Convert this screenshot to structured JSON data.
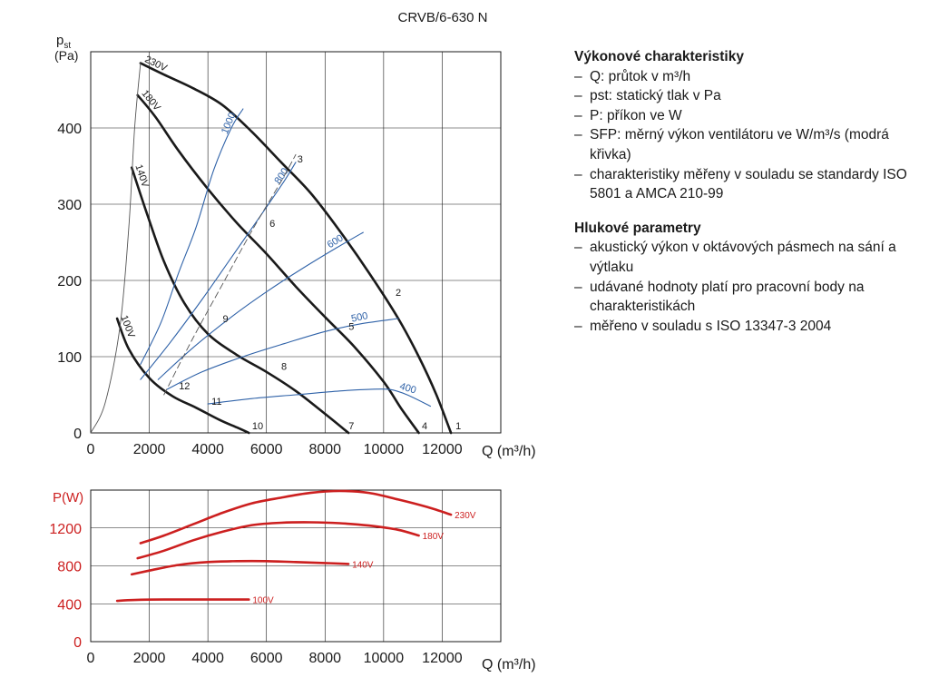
{
  "chart_data": [
    {
      "type": "line",
      "title": "CRVB/6-630 N",
      "ylabel_main": "p",
      "ylabel_sub": "st",
      "ylabel_unit": "(Pa)",
      "xlabel": "Q (m³/h)",
      "xlim": [
        0,
        14000
      ],
      "ylim": [
        0,
        500
      ],
      "xticks": [
        "0",
        "2000",
        "4000",
        "6000",
        "8000",
        "10000",
        "12000"
      ],
      "yticks": [
        "0",
        "100",
        "200",
        "300",
        "400"
      ],
      "grid": true,
      "colors": {
        "curve": "#1a1a1a",
        "sfp": "#2f62a8",
        "system": "#555555"
      },
      "series": [
        {
          "name": "230V",
          "kind": "voltage",
          "x": [
            1700,
            2500,
            3500,
            4500,
            5500,
            6500,
            7500,
            8500,
            9500,
            10500,
            11200,
            11800,
            12300
          ],
          "y": [
            485,
            470,
            452,
            430,
            395,
            355,
            315,
            265,
            210,
            150,
            100,
            50,
            0
          ]
        },
        {
          "name": "180V",
          "kind": "voltage",
          "x": [
            1600,
            2200,
            3000,
            4000,
            5000,
            6000,
            7000,
            8000,
            9000,
            10000,
            10600,
            11200
          ],
          "y": [
            443,
            415,
            370,
            320,
            275,
            235,
            192,
            152,
            113,
            67,
            32,
            0
          ]
        },
        {
          "name": "140V",
          "kind": "voltage",
          "x": [
            1400,
            1900,
            2500,
            3200,
            4000,
            5000,
            6000,
            7000,
            8000,
            8800
          ],
          "y": [
            348,
            290,
            225,
            170,
            130,
            102,
            80,
            55,
            25,
            0
          ]
        },
        {
          "name": "100V",
          "kind": "voltage",
          "x": [
            900,
            1300,
            2000,
            2800,
            3600,
            4400,
            5000,
            5400
          ],
          "y": [
            150,
            110,
            72,
            48,
            33,
            17,
            7,
            0
          ]
        },
        {
          "name": "1000",
          "kind": "sfp",
          "x": [
            1700,
            2400,
            3000,
            3600,
            4200,
            4800,
            5200
          ],
          "y": [
            90,
            145,
            210,
            270,
            345,
            400,
            425
          ]
        },
        {
          "name": "800",
          "kind": "sfp",
          "x": [
            1700,
            2700,
            3800,
            4800,
            5800,
            6600,
            7000
          ],
          "y": [
            70,
            118,
            175,
            230,
            285,
            330,
            355
          ]
        },
        {
          "name": "600",
          "kind": "sfp",
          "x": [
            2300,
            3500,
            4800,
            6000,
            7200,
            8400,
            9300
          ],
          "y": [
            70,
            112,
            152,
            185,
            215,
            243,
            263
          ]
        },
        {
          "name": "500",
          "kind": "sfp",
          "x": [
            2600,
            3800,
            5200,
            6600,
            8000,
            9200,
            10500
          ],
          "y": [
            57,
            80,
            100,
            117,
            133,
            143,
            150
          ]
        },
        {
          "name": "400",
          "kind": "sfp",
          "x": [
            4000,
            5500,
            7000,
            8500,
            9500,
            10200,
            10800,
            11600
          ],
          "y": [
            38,
            45,
            50,
            55,
            57,
            57,
            50,
            35
          ]
        },
        {
          "name": "system",
          "kind": "system",
          "x": [
            0,
            500,
            1000,
            1300,
            1500,
            1700
          ],
          "y": [
            0,
            40,
            140,
            270,
            400,
            485
          ]
        },
        {
          "name": "system-2",
          "kind": "system",
          "x": [
            2500,
            3500,
            4500,
            5500,
            6500,
            7000
          ],
          "y": [
            50,
            125,
            195,
            265,
            330,
            365
          ]
        }
      ],
      "point_labels": [
        {
          "label": "1",
          "x": 12550,
          "y": 5
        },
        {
          "label": "2",
          "x": 10500,
          "y": 180
        },
        {
          "label": "3",
          "x": 7150,
          "y": 355
        },
        {
          "label": "4",
          "x": 11400,
          "y": 5
        },
        {
          "label": "5",
          "x": 8900,
          "y": 135
        },
        {
          "label": "6",
          "x": 6200,
          "y": 270
        },
        {
          "label": "7",
          "x": 8900,
          "y": 5
        },
        {
          "label": "8",
          "x": 6600,
          "y": 83
        },
        {
          "label": "9",
          "x": 4600,
          "y": 145
        },
        {
          "label": "10",
          "x": 5700,
          "y": 5
        },
        {
          "label": "11",
          "x": 4300,
          "y": 37
        },
        {
          "label": "12",
          "x": 3200,
          "y": 57
        }
      ]
    },
    {
      "type": "line",
      "ylabel": "P(W)",
      "xlabel": "Q (m³/h)",
      "xlim": [
        0,
        14000
      ],
      "ylim": [
        0,
        1600
      ],
      "xticks": [
        "0",
        "2000",
        "4000",
        "6000",
        "8000",
        "10000",
        "12000"
      ],
      "yticks": [
        "0",
        "400",
        "800",
        "1200"
      ],
      "grid": true,
      "colors": {
        "curve": "#cc1f1f",
        "axis_label": "#cc1f1f"
      },
      "series": [
        {
          "name": "230V",
          "x": [
            1700,
            2500,
            3500,
            4500,
            5500,
            6500,
            7500,
            8500,
            9500,
            10500,
            11500,
            12300
          ],
          "y": [
            1040,
            1120,
            1240,
            1360,
            1460,
            1520,
            1570,
            1590,
            1570,
            1500,
            1420,
            1340
          ]
        },
        {
          "name": "180V",
          "x": [
            1600,
            2500,
            3500,
            4500,
            5500,
            6500,
            7500,
            8500,
            9500,
            10500,
            11200
          ],
          "y": [
            880,
            960,
            1070,
            1160,
            1230,
            1255,
            1260,
            1250,
            1225,
            1180,
            1120
          ]
        },
        {
          "name": "140V",
          "x": [
            1400,
            2000,
            3000,
            4000,
            5000,
            6000,
            7000,
            8000,
            8800
          ],
          "y": [
            710,
            750,
            810,
            840,
            850,
            850,
            840,
            830,
            820
          ]
        },
        {
          "name": "100V",
          "x": [
            900,
            1500,
            2500,
            3500,
            4500,
            5400
          ],
          "y": [
            430,
            440,
            445,
            445,
            445,
            445
          ]
        }
      ]
    }
  ],
  "info": {
    "performance_title": "Výkonové charakteristiky",
    "performance_items": [
      "Q: průtok v m³/h",
      "pst: statický tlak v Pa",
      "P: příkon ve W",
      "SFP: měrný výkon ventilátoru ve W/m³/s (modrá křivka)",
      "charakteristiky měřeny v souladu se stan­dardy ISO 5801 a AMCA 210-99"
    ],
    "noise_title": "Hlukové parametry",
    "noise_items": [
      "akustický výkon v oktávových pásmech na sání a výtlaku",
      "udávané hodnoty platí pro pracovní body na charakteristikách",
      "měřeno v souladu s ISO 13347-3 2004"
    ]
  }
}
